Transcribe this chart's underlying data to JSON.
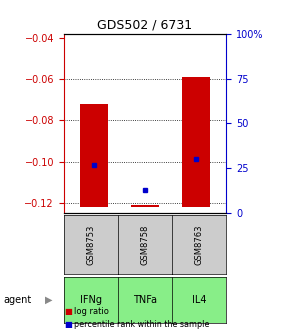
{
  "title": "GDS502 / 6731",
  "samples": [
    "GSM8753",
    "GSM8758",
    "GSM8763"
  ],
  "agents": [
    "IFNg",
    "TNFa",
    "IL4"
  ],
  "log_ratios": [
    -0.072,
    -0.121,
    -0.059
  ],
  "log_ratio_base": -0.122,
  "percentile_ranks": [
    27,
    13,
    30
  ],
  "ylim_left": [
    -0.125,
    -0.038
  ],
  "ylim_right": [
    0,
    100
  ],
  "left_ticks": [
    -0.12,
    -0.1,
    -0.08,
    -0.06,
    -0.04
  ],
  "right_ticks": [
    0,
    25,
    50,
    75,
    100
  ],
  "right_tick_labels": [
    "0",
    "25",
    "50",
    "75",
    "100%"
  ],
  "bar_color": "#cc0000",
  "dot_color": "#0000cc",
  "grid_color": "#000000",
  "sample_box_color": "#cccccc",
  "agent_box_color": "#88ee88",
  "left_axis_color": "#cc0000",
  "right_axis_color": "#0000cc",
  "bar_width": 0.55
}
